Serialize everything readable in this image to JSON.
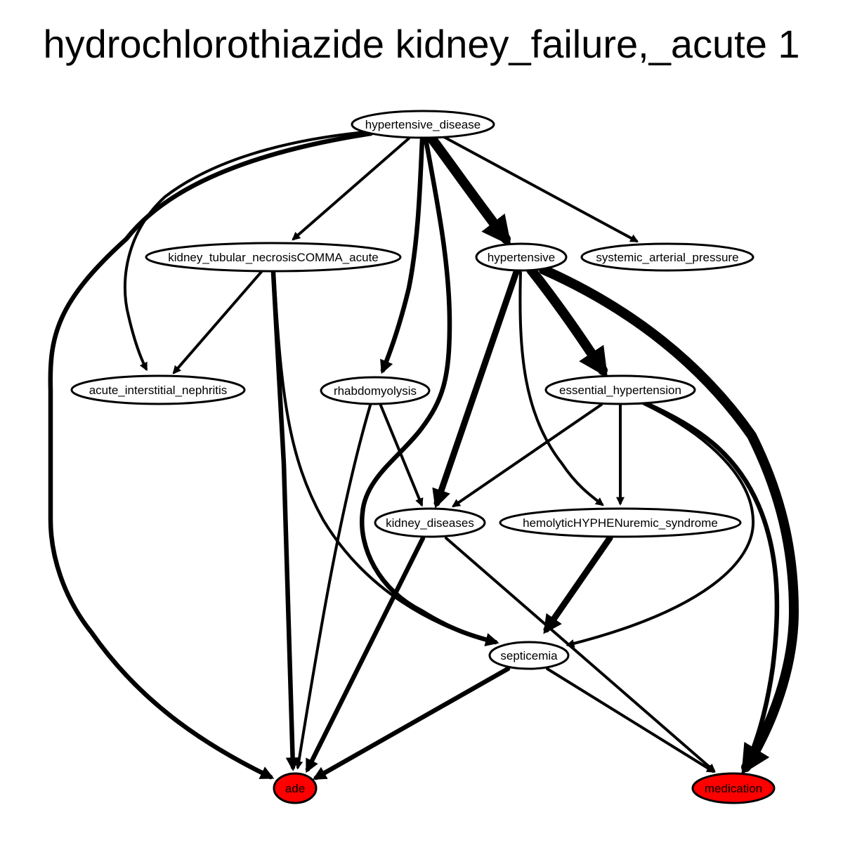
{
  "title": "hydrochlorothiazide kidney_failure,_acute 1",
  "colors": {
    "highlight": "#ff0000",
    "default_fill": "#ffffff",
    "stroke": "#000000"
  },
  "nodes": [
    {
      "id": "hypertensive_disease",
      "label": "hypertensive_disease",
      "highlight": false
    },
    {
      "id": "kidney_tubular_necrosis",
      "label": "kidney_tubular_necrosisCOMMA_acute",
      "highlight": false
    },
    {
      "id": "hypertensive",
      "label": "hypertensive",
      "highlight": false
    },
    {
      "id": "systemic_arterial_pressure",
      "label": "systemic_arterial_pressure",
      "highlight": false
    },
    {
      "id": "acute_interstitial_nephritis",
      "label": "acute_interstitial_nephritis",
      "highlight": false
    },
    {
      "id": "rhabdomyolysis",
      "label": "rhabdomyolysis",
      "highlight": false
    },
    {
      "id": "essential_hypertension",
      "label": "essential_hypertension",
      "highlight": false
    },
    {
      "id": "kidney_diseases",
      "label": "kidney_diseases",
      "highlight": false
    },
    {
      "id": "hemolytic_uremic_syndrome",
      "label": "hemolyticHYPHENuremic_syndrome",
      "highlight": false
    },
    {
      "id": "septicemia",
      "label": "septicemia",
      "highlight": false
    },
    {
      "id": "ade",
      "label": "ade",
      "highlight": true
    },
    {
      "id": "medication",
      "label": "medication",
      "highlight": true
    }
  ],
  "edges": [
    {
      "from": "hypertensive_disease",
      "to": "kidney_tubular_necrosis",
      "weight": 1
    },
    {
      "from": "hypertensive_disease",
      "to": "acute_interstitial_nephritis",
      "weight": 1
    },
    {
      "from": "hypertensive_disease",
      "to": "ade",
      "weight": 2
    },
    {
      "from": "hypertensive_disease",
      "to": "rhabdomyolysis",
      "weight": 2
    },
    {
      "from": "hypertensive_disease",
      "to": "hypertensive",
      "weight": 4
    },
    {
      "from": "hypertensive_disease",
      "to": "systemic_arterial_pressure",
      "weight": 1
    },
    {
      "from": "hypertensive_disease",
      "to": "septicemia",
      "weight": 2
    },
    {
      "from": "kidney_tubular_necrosis",
      "to": "acute_interstitial_nephritis",
      "weight": 1
    },
    {
      "from": "kidney_tubular_necrosis",
      "to": "ade",
      "weight": 2
    },
    {
      "from": "kidney_tubular_necrosis",
      "to": "septicemia",
      "weight": 1
    },
    {
      "from": "hypertensive",
      "to": "kidney_diseases",
      "weight": 3
    },
    {
      "from": "hypertensive",
      "to": "hemolytic_uremic_syndrome",
      "weight": 1
    },
    {
      "from": "hypertensive",
      "to": "essential_hypertension",
      "weight": 4
    },
    {
      "from": "hypertensive",
      "to": "medication",
      "weight": 4
    },
    {
      "from": "rhabdomyolysis",
      "to": "kidney_diseases",
      "weight": 1
    },
    {
      "from": "rhabdomyolysis",
      "to": "ade",
      "weight": 1
    },
    {
      "from": "essential_hypertension",
      "to": "kidney_diseases",
      "weight": 1
    },
    {
      "from": "essential_hypertension",
      "to": "hemolytic_uremic_syndrome",
      "weight": 1
    },
    {
      "from": "essential_hypertension",
      "to": "medication",
      "weight": 2
    },
    {
      "from": "essential_hypertension",
      "to": "septicemia",
      "weight": 1
    },
    {
      "from": "kidney_diseases",
      "to": "ade",
      "weight": 2
    },
    {
      "from": "kidney_diseases",
      "to": "medication",
      "weight": 1
    },
    {
      "from": "hemolytic_uremic_syndrome",
      "to": "septicemia",
      "weight": 3
    },
    {
      "from": "septicemia",
      "to": "ade",
      "weight": 2
    },
    {
      "from": "septicemia",
      "to": "medication",
      "weight": 1
    }
  ]
}
